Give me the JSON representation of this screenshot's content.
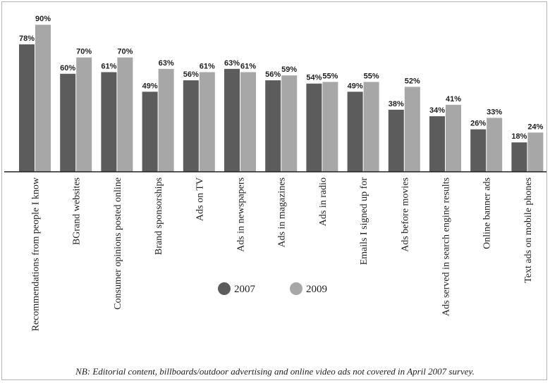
{
  "chart_data": {
    "type": "bar",
    "categories": [
      "Recommendations from people I know",
      "BGrand websites",
      "Consumer opinions posted online",
      "Brand sponsorships",
      "Ads on TV",
      "Ads in newspapers",
      "Ads in magazines",
      "Ads in radio",
      "Emails I signed up for",
      "Ads before movies",
      "Ads served in search engine results",
      "Online banner ads",
      "Text ads on mobile phones"
    ],
    "series": [
      {
        "name": "2007",
        "values": [
          78,
          60,
          61,
          49,
          56,
          63,
          56,
          54,
          49,
          38,
          34,
          26,
          18
        ],
        "color": "#5c5c5c"
      },
      {
        "name": "2009",
        "values": [
          90,
          70,
          70,
          63,
          61,
          61,
          59,
          55,
          55,
          52,
          41,
          33,
          24
        ],
        "color": "#a7a7a7"
      }
    ],
    "value_labels": [
      [
        "78%",
        "60%",
        "61%",
        "49%",
        "56%",
        "63%",
        "56%",
        "54%",
        "49%",
        "38%",
        "34%",
        "26%",
        "18%"
      ],
      [
        "90%",
        "70%",
        "70%",
        "63%",
        "61%",
        "61%",
        "59%",
        "55%",
        "55%",
        "52%",
        "41%",
        "33%",
        "24%"
      ]
    ],
    "ylim": [
      0,
      100
    ],
    "grid": false,
    "legend_position": "middle",
    "footnote": "NB: Editorial content, billboards/outdoor advertising and online video ads not covered in April 2007 survey."
  }
}
